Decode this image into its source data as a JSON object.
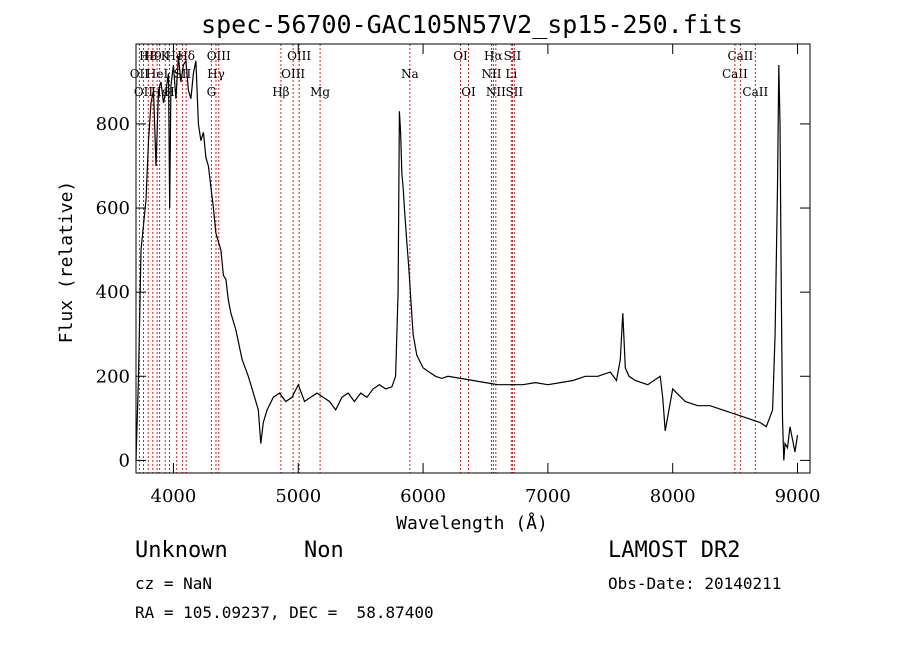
{
  "chart_data": {
    "type": "line",
    "title": "spec-56700-GAC105N57V2_sp15-250.fits",
    "xlabel": "Wavelength (Å)",
    "ylabel": "Flux (relative)",
    "xlim": [
      3700,
      9100
    ],
    "ylim": [
      -30,
      990
    ],
    "xticks": [
      4000,
      5000,
      6000,
      7000,
      8000,
      9000
    ],
    "yticks": [
      0,
      200,
      400,
      600,
      800
    ],
    "grid": false,
    "line_color": "#000000",
    "marker_color": "#cc2222",
    "series": [
      {
        "x": [
          3700,
          3720,
          3740,
          3760,
          3780,
          3800,
          3820,
          3840,
          3860,
          3880,
          3900,
          3920,
          3940,
          3960,
          3970,
          3980,
          4000,
          4020,
          4040,
          4060,
          4080,
          4100,
          4120,
          4140,
          4160,
          4180,
          4200,
          4220,
          4240,
          4260,
          4280,
          4300,
          4320,
          4340,
          4360,
          4380,
          4400,
          4420,
          4440,
          4460,
          4480,
          4500,
          4550,
          4600,
          4650,
          4680,
          4700,
          4720,
          4750,
          4800,
          4850,
          4900,
          4950,
          5000,
          5050,
          5100,
          5150,
          5200,
          5250,
          5300,
          5350,
          5400,
          5450,
          5500,
          5550,
          5600,
          5650,
          5700,
          5750,
          5780,
          5800,
          5810,
          5820,
          5830,
          5840,
          5850,
          5860,
          5870,
          5880,
          5890,
          5900,
          5920,
          5950,
          6000,
          6050,
          6100,
          6150,
          6200,
          6300,
          6400,
          6500,
          6600,
          6700,
          6800,
          6900,
          7000,
          7100,
          7200,
          7300,
          7400,
          7500,
          7550,
          7580,
          7600,
          7620,
          7650,
          7700,
          7800,
          7900,
          7920,
          7940,
          8000,
          8100,
          8200,
          8300,
          8400,
          8500,
          8600,
          8700,
          8750,
          8800,
          8820,
          8840,
          8850,
          8860,
          8870,
          8880,
          8890,
          8900,
          8920,
          8940,
          8960,
          8980,
          9000
        ],
        "y": [
          0,
          200,
          500,
          560,
          620,
          760,
          850,
          880,
          700,
          880,
          900,
          850,
          880,
          920,
          600,
          890,
          940,
          860,
          960,
          900,
          940,
          950,
          880,
          860,
          920,
          950,
          800,
          760,
          780,
          720,
          700,
          650,
          600,
          540,
          520,
          500,
          440,
          430,
          380,
          350,
          330,
          310,
          240,
          200,
          150,
          120,
          40,
          90,
          120,
          150,
          160,
          140,
          150,
          180,
          140,
          150,
          160,
          150,
          140,
          120,
          150,
          160,
          140,
          160,
          150,
          170,
          180,
          170,
          175,
          200,
          400,
          830,
          780,
          680,
          650,
          600,
          560,
          520,
          480,
          440,
          390,
          300,
          250,
          220,
          210,
          200,
          195,
          200,
          195,
          190,
          185,
          180,
          180,
          180,
          185,
          180,
          185,
          190,
          200,
          200,
          210,
          190,
          240,
          350,
          220,
          200,
          190,
          180,
          200,
          150,
          70,
          170,
          140,
          130,
          130,
          120,
          110,
          100,
          90,
          80,
          120,
          300,
          650,
          940,
          800,
          400,
          100,
          0,
          40,
          30,
          80,
          50,
          20,
          60
        ]
      }
    ],
    "line_markers": [
      {
        "wave": 3727,
        "label": "OII",
        "row": 2
      },
      {
        "wave": 3760,
        "label": "OII",
        "row": 3
      },
      {
        "wave": 3798,
        "label": "H8",
        "row": 1
      },
      {
        "wave": 3835,
        "label": "H9",
        "row": 1
      },
      {
        "wave": 3869,
        "label": "HeI",
        "row": 2
      },
      {
        "wave": 3889,
        "label": "Hε",
        "row": 3
      },
      {
        "wave": 3934,
        "label": "K",
        "row": 1
      },
      {
        "wave": 3968,
        "label": "H",
        "row": 3
      },
      {
        "wave": 4026,
        "label": "HeI",
        "row": 1
      },
      {
        "wave": 4072,
        "label": "SII",
        "row": 2
      },
      {
        "wave": 4102,
        "label": "Hδ",
        "row": 1
      },
      {
        "wave": 4304,
        "label": "G",
        "row": 3
      },
      {
        "wave": 4341,
        "label": "Hγ",
        "row": 2
      },
      {
        "wave": 4363,
        "label": "OIII",
        "row": 1
      },
      {
        "wave": 4861,
        "label": "Hβ",
        "row": 3
      },
      {
        "wave": 4959,
        "label": "OIII",
        "row": 2
      },
      {
        "wave": 5007,
        "label": "OIII",
        "row": 1
      },
      {
        "wave": 5175,
        "label": "Mg",
        "row": 3
      },
      {
        "wave": 5894,
        "label": "Na",
        "row": 2
      },
      {
        "wave": 6300,
        "label": "OI",
        "row": 1
      },
      {
        "wave": 6364,
        "label": "OI",
        "row": 3
      },
      {
        "wave": 6548,
        "label": "NII",
        "row": 2
      },
      {
        "wave": 6563,
        "label": "Hα",
        "row": 1
      },
      {
        "wave": 6583,
        "label": "NII",
        "row": 3
      },
      {
        "wave": 6707,
        "label": "Li",
        "row": 2
      },
      {
        "wave": 6716,
        "label": "SII",
        "row": 1
      },
      {
        "wave": 6731,
        "label": "SII",
        "row": 3
      },
      {
        "wave": 8498,
        "label": "CaII",
        "row": 2
      },
      {
        "wave": 8542,
        "label": "CaII",
        "row": 1
      },
      {
        "wave": 8662,
        "label": "CaII",
        "row": 3
      }
    ]
  },
  "info": {
    "class_label": "Unknown",
    "subclass_label": "Non",
    "survey_label": "LAMOST DR2",
    "cz_label": "cz = NaN",
    "obs_date_label": "Obs-Date: 20140211",
    "coords_label": "RA = 105.09237, DEC =  58.87400"
  }
}
